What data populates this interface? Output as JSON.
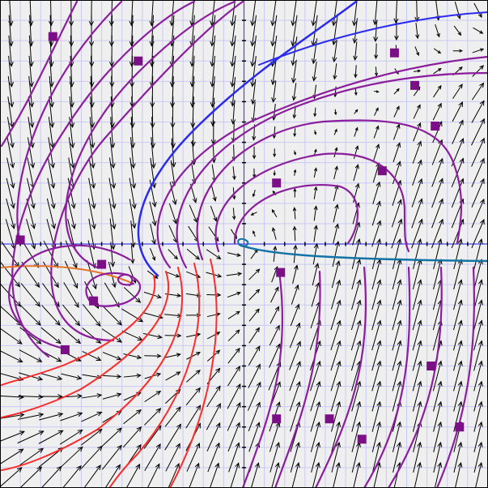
{
  "colors": {
    "background": "#efefef",
    "grid": "#c9c9f5",
    "axis": "#4444ee",
    "arrow": "#000000",
    "frame": "#000000",
    "marker": "#7b0f86",
    "trajectory": "#8b1e9c",
    "separatrix_upper": "#2b2bf0",
    "separatrix_lower": "#ff2a2a",
    "unstable_left": "#e8742a",
    "stable_right": "#1273a6"
  },
  "icons": {
    "marker": "square-marker",
    "vector": "arrow"
  },
  "chart_data": {
    "type": "phase-portrait",
    "xlim": [
      -6,
      6
    ],
    "ylim": [
      -6,
      6
    ],
    "grid": true,
    "equilibria": [
      {
        "kind": "stable-spiral",
        "x": 0,
        "y": 0
      },
      {
        "kind": "spiral",
        "x": -2.8,
        "y": -1.0
      }
    ],
    "curve_start_points": [
      [
        -4.7,
        5.1
      ],
      [
        -2.6,
        4.5
      ],
      [
        3.7,
        4.7
      ],
      [
        4.2,
        3.9
      ],
      [
        4.7,
        2.9
      ],
      [
        3.4,
        1.8
      ],
      [
        0.8,
        1.5
      ],
      [
        -5.5,
        0.1
      ],
      [
        -3.5,
        -0.5
      ],
      [
        0.9,
        -0.7
      ],
      [
        -3.7,
        -1.4
      ],
      [
        -4.4,
        -2.6
      ],
      [
        4.6,
        -3.0
      ],
      [
        0.8,
        -4.3
      ],
      [
        2.1,
        -4.3
      ],
      [
        2.9,
        -4.8
      ],
      [
        5.3,
        -4.5
      ]
    ]
  }
}
